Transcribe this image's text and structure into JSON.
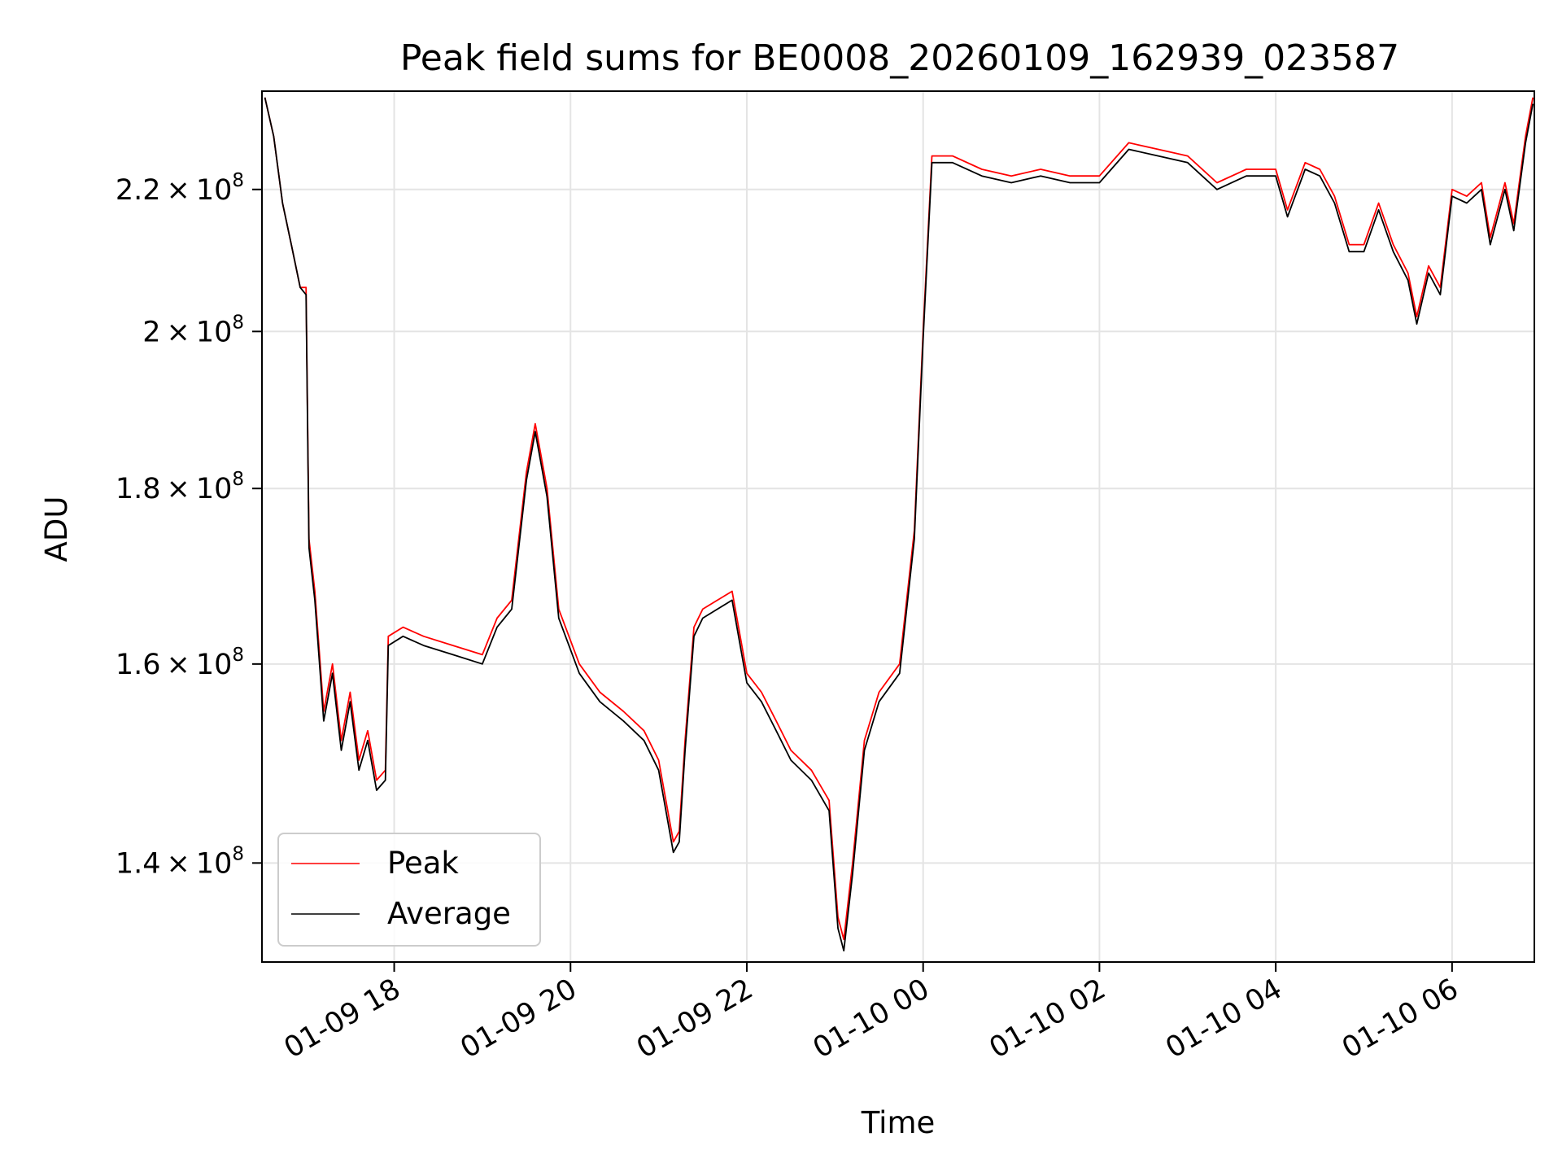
{
  "chart_data": {
    "type": "line",
    "title": "Peak field sums for BE0008_20260109_162939_023587",
    "xlabel": "Time",
    "ylabel": "ADU",
    "y_scale": "log",
    "grid": true,
    "legend_position": "lower-left",
    "xlim": [
      "2026-01-09 16:30",
      "2026-01-10 06:56"
    ],
    "ylim": [
      131000000,
      235000000
    ],
    "x_ticks": [
      {
        "value": "2026-01-09 18:00",
        "label": "01-09 18"
      },
      {
        "value": "2026-01-09 20:00",
        "label": "01-09 20"
      },
      {
        "value": "2026-01-09 22:00",
        "label": "01-09 22"
      },
      {
        "value": "2026-01-10 00:00",
        "label": "01-10 00"
      },
      {
        "value": "2026-01-10 02:00",
        "label": "01-10 02"
      },
      {
        "value": "2026-01-10 04:00",
        "label": "01-10 04"
      },
      {
        "value": "2026-01-10 06:00",
        "label": "01-10 06"
      }
    ],
    "y_ticks": [
      {
        "value": 140000000,
        "mantissa": "1.4",
        "exponent": "8"
      },
      {
        "value": 160000000,
        "mantissa": "1.6",
        "exponent": "8"
      },
      {
        "value": 180000000,
        "mantissa": "1.8",
        "exponent": "8"
      },
      {
        "value": 200000000,
        "mantissa": "2",
        "exponent": "8"
      },
      {
        "value": 220000000,
        "mantissa": "2.2",
        "exponent": "8"
      }
    ],
    "series": [
      {
        "name": "Peak",
        "color": "#ff0000",
        "points": [
          [
            "2026-01-09 16:32",
            234000000
          ],
          [
            "2026-01-09 16:38",
            228000000
          ],
          [
            "2026-01-09 16:44",
            218000000
          ],
          [
            "2026-01-09 16:50",
            212000000
          ],
          [
            "2026-01-09 16:56",
            206000000
          ],
          [
            "2026-01-09 17:00",
            206000000
          ],
          [
            "2026-01-09 17:02",
            174000000
          ],
          [
            "2026-01-09 17:06",
            168000000
          ],
          [
            "2026-01-09 17:12",
            155000000
          ],
          [
            "2026-01-09 17:18",
            160000000
          ],
          [
            "2026-01-09 17:24",
            152000000
          ],
          [
            "2026-01-09 17:30",
            157000000
          ],
          [
            "2026-01-09 17:36",
            150000000
          ],
          [
            "2026-01-09 17:42",
            153000000
          ],
          [
            "2026-01-09 17:48",
            148000000
          ],
          [
            "2026-01-09 17:54",
            149000000
          ],
          [
            "2026-01-09 17:56",
            163000000
          ],
          [
            "2026-01-09 18:06",
            164000000
          ],
          [
            "2026-01-09 18:20",
            163000000
          ],
          [
            "2026-01-09 18:40",
            162000000
          ],
          [
            "2026-01-09 19:00",
            161000000
          ],
          [
            "2026-01-09 19:10",
            165000000
          ],
          [
            "2026-01-09 19:20",
            167000000
          ],
          [
            "2026-01-09 19:30",
            182000000
          ],
          [
            "2026-01-09 19:36",
            188000000
          ],
          [
            "2026-01-09 19:44",
            180000000
          ],
          [
            "2026-01-09 19:52",
            166000000
          ],
          [
            "2026-01-09 20:06",
            160000000
          ],
          [
            "2026-01-09 20:20",
            157000000
          ],
          [
            "2026-01-09 20:36",
            155000000
          ],
          [
            "2026-01-09 20:50",
            153000000
          ],
          [
            "2026-01-09 21:00",
            150000000
          ],
          [
            "2026-01-09 21:10",
            142000000
          ],
          [
            "2026-01-09 21:14",
            143000000
          ],
          [
            "2026-01-09 21:18",
            152000000
          ],
          [
            "2026-01-09 21:24",
            164000000
          ],
          [
            "2026-01-09 21:30",
            166000000
          ],
          [
            "2026-01-09 21:40",
            167000000
          ],
          [
            "2026-01-09 21:50",
            168000000
          ],
          [
            "2026-01-09 22:00",
            159000000
          ],
          [
            "2026-01-09 22:10",
            157000000
          ],
          [
            "2026-01-09 22:20",
            154000000
          ],
          [
            "2026-01-09 22:30",
            151000000
          ],
          [
            "2026-01-09 22:44",
            149000000
          ],
          [
            "2026-01-09 22:56",
            146000000
          ],
          [
            "2026-01-09 23:02",
            135000000
          ],
          [
            "2026-01-09 23:06",
            133000000
          ],
          [
            "2026-01-09 23:12",
            140000000
          ],
          [
            "2026-01-09 23:20",
            152000000
          ],
          [
            "2026-01-09 23:30",
            157000000
          ],
          [
            "2026-01-09 23:44",
            160000000
          ],
          [
            "2026-01-09 23:54",
            175000000
          ],
          [
            "2026-01-10 00:00",
            200000000
          ],
          [
            "2026-01-10 00:06",
            225000000
          ],
          [
            "2026-01-10 00:20",
            225000000
          ],
          [
            "2026-01-10 00:40",
            223000000
          ],
          [
            "2026-01-10 01:00",
            222000000
          ],
          [
            "2026-01-10 01:20",
            223000000
          ],
          [
            "2026-01-10 01:40",
            222000000
          ],
          [
            "2026-01-10 02:00",
            222000000
          ],
          [
            "2026-01-10 02:20",
            227000000
          ],
          [
            "2026-01-10 02:40",
            226000000
          ],
          [
            "2026-01-10 03:00",
            225000000
          ],
          [
            "2026-01-10 03:20",
            221000000
          ],
          [
            "2026-01-10 03:40",
            223000000
          ],
          [
            "2026-01-10 04:00",
            223000000
          ],
          [
            "2026-01-10 04:08",
            217000000
          ],
          [
            "2026-01-10 04:20",
            224000000
          ],
          [
            "2026-01-10 04:30",
            223000000
          ],
          [
            "2026-01-10 04:40",
            219000000
          ],
          [
            "2026-01-10 04:50",
            212000000
          ],
          [
            "2026-01-10 05:00",
            212000000
          ],
          [
            "2026-01-10 05:10",
            218000000
          ],
          [
            "2026-01-10 05:20",
            212000000
          ],
          [
            "2026-01-10 05:30",
            208000000
          ],
          [
            "2026-01-10 05:36",
            202000000
          ],
          [
            "2026-01-10 05:44",
            209000000
          ],
          [
            "2026-01-10 05:52",
            206000000
          ],
          [
            "2026-01-10 06:00",
            220000000
          ],
          [
            "2026-01-10 06:10",
            219000000
          ],
          [
            "2026-01-10 06:20",
            221000000
          ],
          [
            "2026-01-10 06:26",
            213000000
          ],
          [
            "2026-01-10 06:36",
            221000000
          ],
          [
            "2026-01-10 06:42",
            215000000
          ],
          [
            "2026-01-10 06:50",
            228000000
          ],
          [
            "2026-01-10 06:55",
            234000000
          ]
        ]
      },
      {
        "name": "Average",
        "color": "#000000",
        "points": [
          [
            "2026-01-09 16:32",
            234000000
          ],
          [
            "2026-01-09 16:38",
            228000000
          ],
          [
            "2026-01-09 16:44",
            218000000
          ],
          [
            "2026-01-09 16:50",
            212000000
          ],
          [
            "2026-01-09 16:56",
            206000000
          ],
          [
            "2026-01-09 17:00",
            205000000
          ],
          [
            "2026-01-09 17:02",
            173000000
          ],
          [
            "2026-01-09 17:06",
            167000000
          ],
          [
            "2026-01-09 17:12",
            154000000
          ],
          [
            "2026-01-09 17:18",
            159000000
          ],
          [
            "2026-01-09 17:24",
            151000000
          ],
          [
            "2026-01-09 17:30",
            156000000
          ],
          [
            "2026-01-09 17:36",
            149000000
          ],
          [
            "2026-01-09 17:42",
            152000000
          ],
          [
            "2026-01-09 17:48",
            147000000
          ],
          [
            "2026-01-09 17:54",
            148000000
          ],
          [
            "2026-01-09 17:56",
            162000000
          ],
          [
            "2026-01-09 18:06",
            163000000
          ],
          [
            "2026-01-09 18:20",
            162000000
          ],
          [
            "2026-01-09 18:40",
            161000000
          ],
          [
            "2026-01-09 19:00",
            160000000
          ],
          [
            "2026-01-09 19:10",
            164000000
          ],
          [
            "2026-01-09 19:20",
            166000000
          ],
          [
            "2026-01-09 19:30",
            181000000
          ],
          [
            "2026-01-09 19:36",
            187000000
          ],
          [
            "2026-01-09 19:44",
            179000000
          ],
          [
            "2026-01-09 19:52",
            165000000
          ],
          [
            "2026-01-09 20:06",
            159000000
          ],
          [
            "2026-01-09 20:20",
            156000000
          ],
          [
            "2026-01-09 20:36",
            154000000
          ],
          [
            "2026-01-09 20:50",
            152000000
          ],
          [
            "2026-01-09 21:00",
            149000000
          ],
          [
            "2026-01-09 21:10",
            141000000
          ],
          [
            "2026-01-09 21:14",
            142000000
          ],
          [
            "2026-01-09 21:18",
            151000000
          ],
          [
            "2026-01-09 21:24",
            163000000
          ],
          [
            "2026-01-09 21:30",
            165000000
          ],
          [
            "2026-01-09 21:40",
            166000000
          ],
          [
            "2026-01-09 21:50",
            167000000
          ],
          [
            "2026-01-09 22:00",
            158000000
          ],
          [
            "2026-01-09 22:10",
            156000000
          ],
          [
            "2026-01-09 22:20",
            153000000
          ],
          [
            "2026-01-09 22:30",
            150000000
          ],
          [
            "2026-01-09 22:44",
            148000000
          ],
          [
            "2026-01-09 22:56",
            145000000
          ],
          [
            "2026-01-09 23:02",
            134000000
          ],
          [
            "2026-01-09 23:06",
            132000000
          ],
          [
            "2026-01-09 23:12",
            139000000
          ],
          [
            "2026-01-09 23:20",
            151000000
          ],
          [
            "2026-01-09 23:30",
            156000000
          ],
          [
            "2026-01-09 23:44",
            159000000
          ],
          [
            "2026-01-09 23:54",
            174000000
          ],
          [
            "2026-01-10 00:00",
            199000000
          ],
          [
            "2026-01-10 00:06",
            224000000
          ],
          [
            "2026-01-10 00:20",
            224000000
          ],
          [
            "2026-01-10 00:40",
            222000000
          ],
          [
            "2026-01-10 01:00",
            221000000
          ],
          [
            "2026-01-10 01:20",
            222000000
          ],
          [
            "2026-01-10 01:40",
            221000000
          ],
          [
            "2026-01-10 02:00",
            221000000
          ],
          [
            "2026-01-10 02:20",
            226000000
          ],
          [
            "2026-01-10 02:40",
            225000000
          ],
          [
            "2026-01-10 03:00",
            224000000
          ],
          [
            "2026-01-10 03:20",
            220000000
          ],
          [
            "2026-01-10 03:40",
            222000000
          ],
          [
            "2026-01-10 04:00",
            222000000
          ],
          [
            "2026-01-10 04:08",
            216000000
          ],
          [
            "2026-01-10 04:20",
            223000000
          ],
          [
            "2026-01-10 04:30",
            222000000
          ],
          [
            "2026-01-10 04:40",
            218000000
          ],
          [
            "2026-01-10 04:50",
            211000000
          ],
          [
            "2026-01-10 05:00",
            211000000
          ],
          [
            "2026-01-10 05:10",
            217000000
          ],
          [
            "2026-01-10 05:20",
            211000000
          ],
          [
            "2026-01-10 05:30",
            207000000
          ],
          [
            "2026-01-10 05:36",
            201000000
          ],
          [
            "2026-01-10 05:44",
            208000000
          ],
          [
            "2026-01-10 05:52",
            205000000
          ],
          [
            "2026-01-10 06:00",
            219000000
          ],
          [
            "2026-01-10 06:10",
            218000000
          ],
          [
            "2026-01-10 06:20",
            220000000
          ],
          [
            "2026-01-10 06:26",
            212000000
          ],
          [
            "2026-01-10 06:36",
            220000000
          ],
          [
            "2026-01-10 06:42",
            214000000
          ],
          [
            "2026-01-10 06:50",
            227000000
          ],
          [
            "2026-01-10 06:55",
            233000000
          ]
        ]
      }
    ]
  }
}
